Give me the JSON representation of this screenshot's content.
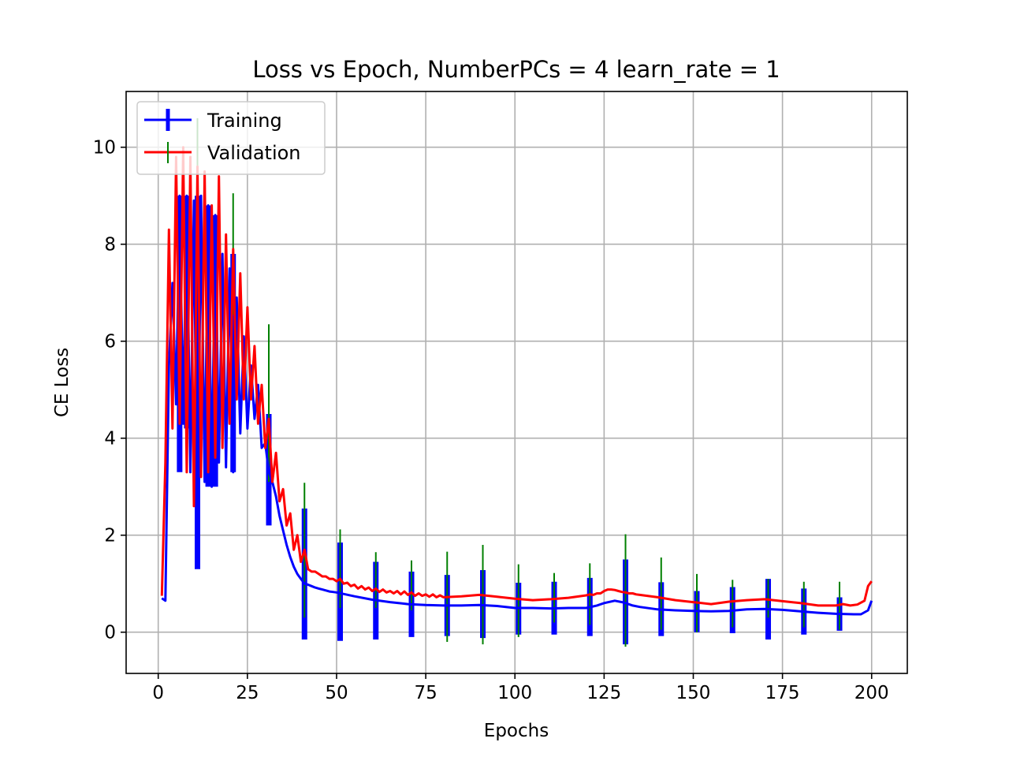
{
  "chart_data": {
    "type": "line",
    "title": "Loss vs Epoch, NumberPCs = 4 learn_rate = 1",
    "xlabel": "Epochs",
    "ylabel": "CE Loss",
    "xlim": [
      -9,
      210
    ],
    "ylim": [
      -0.85,
      11.15
    ],
    "xticks": [
      0,
      25,
      50,
      75,
      100,
      125,
      150,
      175,
      200
    ],
    "yticks": [
      0,
      2,
      4,
      6,
      8,
      10
    ],
    "grid": true,
    "legend_position": "upper-left",
    "colors": {
      "training": "#0000ff",
      "validation": "#ff0000",
      "training_errorbar": "#0000ff",
      "validation_errorbar": "#008000"
    },
    "series": [
      {
        "name": "Training",
        "x": [
          1,
          2,
          3,
          4,
          5,
          6,
          7,
          8,
          9,
          10,
          11,
          12,
          13,
          14,
          15,
          16,
          17,
          18,
          19,
          20,
          21,
          22,
          23,
          24,
          25,
          26,
          27,
          28,
          29,
          30,
          31,
          32,
          33,
          34,
          35,
          36,
          37,
          38,
          39,
          40,
          41,
          42,
          43,
          44,
          45,
          46,
          47,
          48,
          49,
          50,
          55,
          60,
          65,
          70,
          75,
          80,
          85,
          90,
          95,
          100,
          105,
          110,
          115,
          120,
          123,
          125,
          128,
          130,
          131,
          133,
          135,
          140,
          145,
          150,
          155,
          160,
          165,
          170,
          175,
          180,
          185,
          190,
          195,
          197,
          199,
          200
        ],
        "y": [
          0.7,
          0.65,
          5.5,
          7.2,
          4.7,
          9.0,
          4.3,
          9.0,
          3.3,
          8.9,
          1.35,
          9.0,
          3.1,
          8.8,
          3.0,
          8.6,
          3.5,
          7.8,
          3.4,
          7.5,
          3.3,
          6.9,
          4.1,
          6.1,
          4.2,
          5.5,
          4.4,
          5.1,
          3.8,
          3.9,
          3.3,
          3.1,
          2.8,
          2.4,
          2.1,
          1.8,
          1.55,
          1.35,
          1.2,
          1.1,
          1.0,
          0.98,
          0.95,
          0.92,
          0.9,
          0.88,
          0.86,
          0.84,
          0.83,
          0.82,
          0.74,
          0.67,
          0.62,
          0.58,
          0.56,
          0.55,
          0.55,
          0.56,
          0.54,
          0.5,
          0.5,
          0.49,
          0.5,
          0.5,
          0.55,
          0.6,
          0.65,
          0.62,
          0.6,
          0.55,
          0.52,
          0.47,
          0.45,
          0.44,
          0.43,
          0.44,
          0.47,
          0.48,
          0.46,
          0.43,
          0.4,
          0.38,
          0.37,
          0.37,
          0.45,
          0.65
        ]
      },
      {
        "name": "Validation",
        "x": [
          1,
          2,
          3,
          4,
          5,
          6,
          7,
          8,
          9,
          10,
          11,
          12,
          13,
          14,
          15,
          16,
          17,
          18,
          19,
          20,
          21,
          22,
          23,
          24,
          25,
          26,
          27,
          28,
          29,
          30,
          31,
          32,
          33,
          34,
          35,
          36,
          37,
          38,
          39,
          40,
          41,
          42,
          43,
          44,
          45,
          46,
          47,
          48,
          49,
          50,
          51,
          52,
          53,
          54,
          55,
          56,
          57,
          58,
          59,
          60,
          61,
          62,
          63,
          64,
          65,
          66,
          67,
          68,
          69,
          70,
          71,
          72,
          73,
          74,
          75,
          76,
          77,
          78,
          79,
          80,
          85,
          90,
          95,
          100,
          105,
          110,
          115,
          120,
          121,
          122,
          123,
          124,
          125,
          126,
          127,
          128,
          129,
          130,
          131,
          132,
          133,
          134,
          135,
          140,
          145,
          150,
          155,
          160,
          165,
          170,
          175,
          180,
          185,
          190,
          192,
          194,
          196,
          198,
          199,
          200
        ],
        "y": [
          0.75,
          3.5,
          8.3,
          4.2,
          9.8,
          4.3,
          10.0,
          3.3,
          9.8,
          2.6,
          9.6,
          3.2,
          9.5,
          3.3,
          8.8,
          3.6,
          9.4,
          3.8,
          8.2,
          4.3,
          7.9,
          4.8,
          7.4,
          4.8,
          6.7,
          4.8,
          5.9,
          4.3,
          5.1,
          3.8,
          4.4,
          3.1,
          3.7,
          2.7,
          2.95,
          2.2,
          2.45,
          1.7,
          2.0,
          1.45,
          1.7,
          1.3,
          1.25,
          1.25,
          1.2,
          1.15,
          1.15,
          1.1,
          1.1,
          1.05,
          1.1,
          1.0,
          1.02,
          0.95,
          0.98,
          0.9,
          0.95,
          0.88,
          0.92,
          0.85,
          0.9,
          0.83,
          0.88,
          0.82,
          0.85,
          0.8,
          0.85,
          0.78,
          0.84,
          0.77,
          0.82,
          0.75,
          0.8,
          0.75,
          0.78,
          0.73,
          0.78,
          0.72,
          0.76,
          0.72,
          0.74,
          0.77,
          0.73,
          0.69,
          0.66,
          0.68,
          0.71,
          0.76,
          0.78,
          0.77,
          0.8,
          0.8,
          0.85,
          0.88,
          0.88,
          0.87,
          0.85,
          0.83,
          0.82,
          0.8,
          0.8,
          0.78,
          0.77,
          0.72,
          0.66,
          0.62,
          0.58,
          0.63,
          0.66,
          0.68,
          0.64,
          0.6,
          0.55,
          0.55,
          0.58,
          0.55,
          0.57,
          0.65,
          0.95,
          1.05
        ]
      }
    ],
    "error_bars": {
      "epochs": [
        31,
        41,
        51,
        61,
        71,
        81,
        91,
        101,
        111,
        121,
        131,
        141,
        151,
        161,
        171,
        181,
        191
      ],
      "training_low": [
        2.2,
        -0.15,
        -0.18,
        -0.15,
        -0.1,
        -0.08,
        -0.12,
        -0.05,
        -0.05,
        -0.08,
        -0.25,
        -0.08,
        0.0,
        -0.02,
        -0.15,
        -0.05,
        0.03
      ],
      "training_high": [
        4.5,
        2.55,
        1.85,
        1.45,
        1.25,
        1.18,
        1.28,
        1.02,
        1.04,
        1.12,
        1.5,
        1.03,
        0.85,
        0.93,
        1.1,
        0.9,
        0.72
      ],
      "validation_low": [
        3.1,
        0.3,
        0.5,
        0.5,
        0.45,
        -0.2,
        -0.25,
        -0.1,
        0.2,
        0.15,
        -0.3,
        0.05,
        0.0,
        0.1,
        0.3,
        0.1,
        0.05
      ],
      "validation_high": [
        6.35,
        3.08,
        2.12,
        1.65,
        1.48,
        1.66,
        1.8,
        1.4,
        1.22,
        1.42,
        2.02,
        1.54,
        1.2,
        1.08,
        1.1,
        1.04,
        1.04
      ],
      "training_early_low": [
        3.3,
        4.2,
        1.3,
        3.0,
        3.0,
        3.3
      ],
      "training_early_high": [
        9.0,
        9.0,
        9.0,
        8.8,
        8.6,
        7.8
      ],
      "validation_early_x": [
        11,
        21
      ],
      "validation_early_high": [
        10.6,
        9.05
      ],
      "early_x": [
        6,
        8,
        11,
        14,
        16,
        21
      ]
    }
  }
}
